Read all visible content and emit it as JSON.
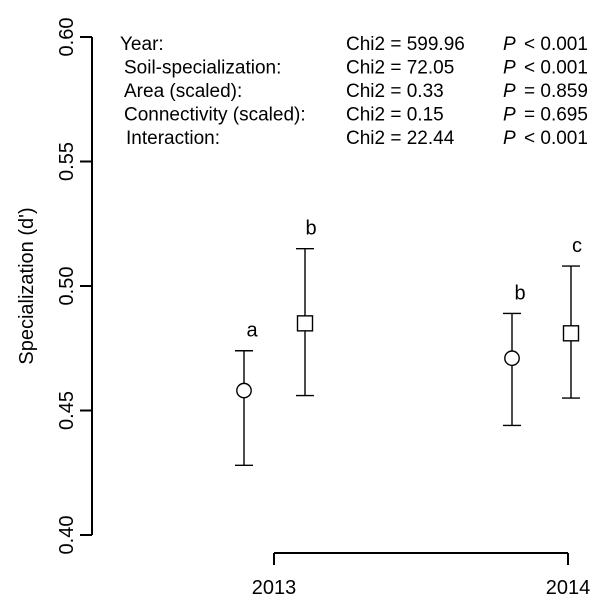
{
  "chart_data": {
    "type": "scatter",
    "ylabel": "Specialization (d')",
    "ylim": [
      0.4,
      0.6
    ],
    "yticks": [
      "0.40",
      "0.45",
      "0.50",
      "0.55",
      "0.60"
    ],
    "categories": [
      "2013",
      "2014"
    ],
    "marker_series": [
      {
        "marker": "circle"
      },
      {
        "marker": "square"
      }
    ],
    "points": [
      {
        "year": "2013",
        "marker": "circle",
        "value": 0.458,
        "lower": 0.428,
        "upper": 0.474,
        "letter": "a"
      },
      {
        "year": "2013",
        "marker": "square",
        "value": 0.485,
        "lower": 0.456,
        "upper": 0.515,
        "letter": "b"
      },
      {
        "year": "2014",
        "marker": "circle",
        "value": 0.471,
        "lower": 0.444,
        "upper": 0.489,
        "letter": "b"
      },
      {
        "year": "2014",
        "marker": "square",
        "value": 0.481,
        "lower": 0.455,
        "upper": 0.508,
        "letter": "c"
      }
    ],
    "stats": [
      {
        "term": "Year:",
        "chi": "Chi2 = 599.96",
        "p_label": "P",
        "p_value": "< 0.001"
      },
      {
        "term": "Soil-specialization:",
        "chi": "Chi2 = 72.05",
        "p_label": "P",
        "p_value": "< 0.001"
      },
      {
        "term": "Area (scaled):",
        "chi": "Chi2 = 0.33",
        "p_label": "P",
        "p_value": "= 0.859"
      },
      {
        "term": "Connectivity (scaled):",
        "chi": "Chi2 = 0.15",
        "p_label": "P",
        "p_value": "= 0.695"
      },
      {
        "term": "Interaction:",
        "chi": "Chi2 = 22.44",
        "p_label": "P",
        "p_value": "< 0.001"
      }
    ],
    "grid": false,
    "legend": "none"
  }
}
